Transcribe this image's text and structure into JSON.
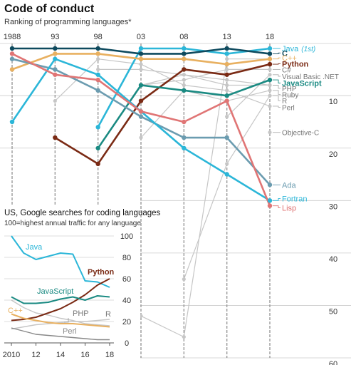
{
  "chart_data": [
    {
      "type": "line",
      "title": "Code of conduct",
      "subtitle": "Ranking of programming languages*",
      "x": [
        1988,
        1993,
        1998,
        2003,
        2008,
        2013,
        2018
      ],
      "x_tick_labels": [
        "1988",
        "93",
        "98",
        "03",
        "08",
        "13",
        "18"
      ],
      "y_reversed": true,
      "ylim": [
        1,
        60
      ],
      "y_ticks": [
        10,
        20,
        30,
        40,
        50,
        60
      ],
      "highlight_annotation": "(1st)",
      "series": [
        {
          "name": "Java",
          "color": "#2bb6d8",
          "values": [
            null,
            null,
            16,
            1,
            1,
            2,
            1
          ]
        },
        {
          "name": "C",
          "color": "#0e4a5e",
          "values": [
            1,
            1,
            1,
            2,
            2,
            1,
            2
          ]
        },
        {
          "name": "C++",
          "color": "#e8b060",
          "values": [
            5,
            2,
            2,
            3,
            3,
            4,
            3
          ]
        },
        {
          "name": "Python",
          "color": "#7a2a14",
          "values": [
            null,
            18,
            23,
            11,
            5,
            6,
            4
          ]
        },
        {
          "name": "C#",
          "color": "#c6c6c6",
          "values": [
            null,
            null,
            null,
            8,
            7,
            5,
            5
          ]
        },
        {
          "name": "Visual Basic .NET",
          "color": "#c6c6c6",
          "values": [
            null,
            null,
            null,
            null,
            null,
            14,
            6
          ]
        },
        {
          "name": "JavaScript",
          "color": "#1a8a82",
          "values": [
            null,
            null,
            20,
            8,
            9,
            10,
            7
          ]
        },
        {
          "name": "PHP",
          "color": "#c6c6c6",
          "values": [
            null,
            null,
            null,
            8,
            6,
            7,
            8
          ]
        },
        {
          "name": "Ruby",
          "color": "#c6c6c6",
          "values": [
            null,
            null,
            null,
            18,
            9,
            11,
            9
          ]
        },
        {
          "name": "R",
          "color": "#c6c6c6",
          "values": [
            null,
            null,
            null,
            null,
            45,
            23,
            10
          ]
        },
        {
          "name": "Perl",
          "color": "#c6c6c6",
          "values": [
            null,
            11,
            3,
            4,
            8,
            9,
            12
          ]
        },
        {
          "name": "Objective-C",
          "color": "#c6c6c6",
          "values": [
            null,
            null,
            null,
            null,
            null,
            null,
            17
          ]
        },
        {
          "name": "Ada",
          "color": "#6b9cb0",
          "values": [
            3,
            5,
            9,
            14,
            18,
            18,
            27
          ]
        },
        {
          "name": "Fortran",
          "color": "#2bb6d8",
          "values": [
            15,
            3,
            6,
            13,
            20,
            25,
            30
          ]
        },
        {
          "name": "Lisp",
          "color": "#e07575",
          "values": [
            2,
            6,
            7,
            13,
            15,
            11,
            31
          ]
        },
        {
          "name": "",
          "color": "#c6c6c6",
          "values": [
            null,
            null,
            null,
            52,
            56,
            3,
            3
          ]
        },
        {
          "name": "",
          "color": "#c6c6c6",
          "values": [
            null,
            null,
            5,
            5,
            6,
            8,
            8
          ]
        }
      ]
    },
    {
      "type": "line",
      "title": "US, Google searches for coding languages",
      "subtitle": "100=highest annual traffic for any language",
      "x": [
        2010,
        2011,
        2012,
        2013,
        2014,
        2015,
        2016,
        2017,
        2018
      ],
      "x_tick_labels": [
        "2010",
        "12",
        "14",
        "16",
        "18"
      ],
      "ylim": [
        0,
        100
      ],
      "y_ticks": [
        0,
        20,
        40,
        60,
        80,
        100
      ],
      "series": [
        {
          "name": "Java",
          "color": "#2bb6d8",
          "values": [
            100,
            84,
            78,
            81,
            84,
            83,
            58,
            57,
            52
          ]
        },
        {
          "name": "Python",
          "color": "#7a2a14",
          "values": [
            21,
            22,
            24,
            28,
            32,
            38,
            45,
            54,
            60
          ]
        },
        {
          "name": "JavaScript",
          "color": "#1a8a82",
          "values": [
            43,
            37,
            37,
            38,
            41,
            43,
            40,
            44,
            43
          ]
        },
        {
          "name": "C++",
          "color": "#e8b060",
          "values": [
            27,
            23,
            21,
            19,
            18,
            18,
            17,
            16,
            15
          ]
        },
        {
          "name": "PHP",
          "color": "#c6c6c6",
          "values": [
            40,
            33,
            28,
            26,
            23,
            21,
            18,
            17,
            16
          ]
        },
        {
          "name": "R",
          "color": "#c6c6c6",
          "values": [
            13,
            15,
            17,
            18,
            19,
            20,
            20,
            21,
            22
          ]
        },
        {
          "name": "Perl",
          "color": "#888888",
          "values": [
            14,
            11,
            8,
            7,
            6,
            5,
            4,
            3,
            3
          ]
        }
      ]
    }
  ]
}
